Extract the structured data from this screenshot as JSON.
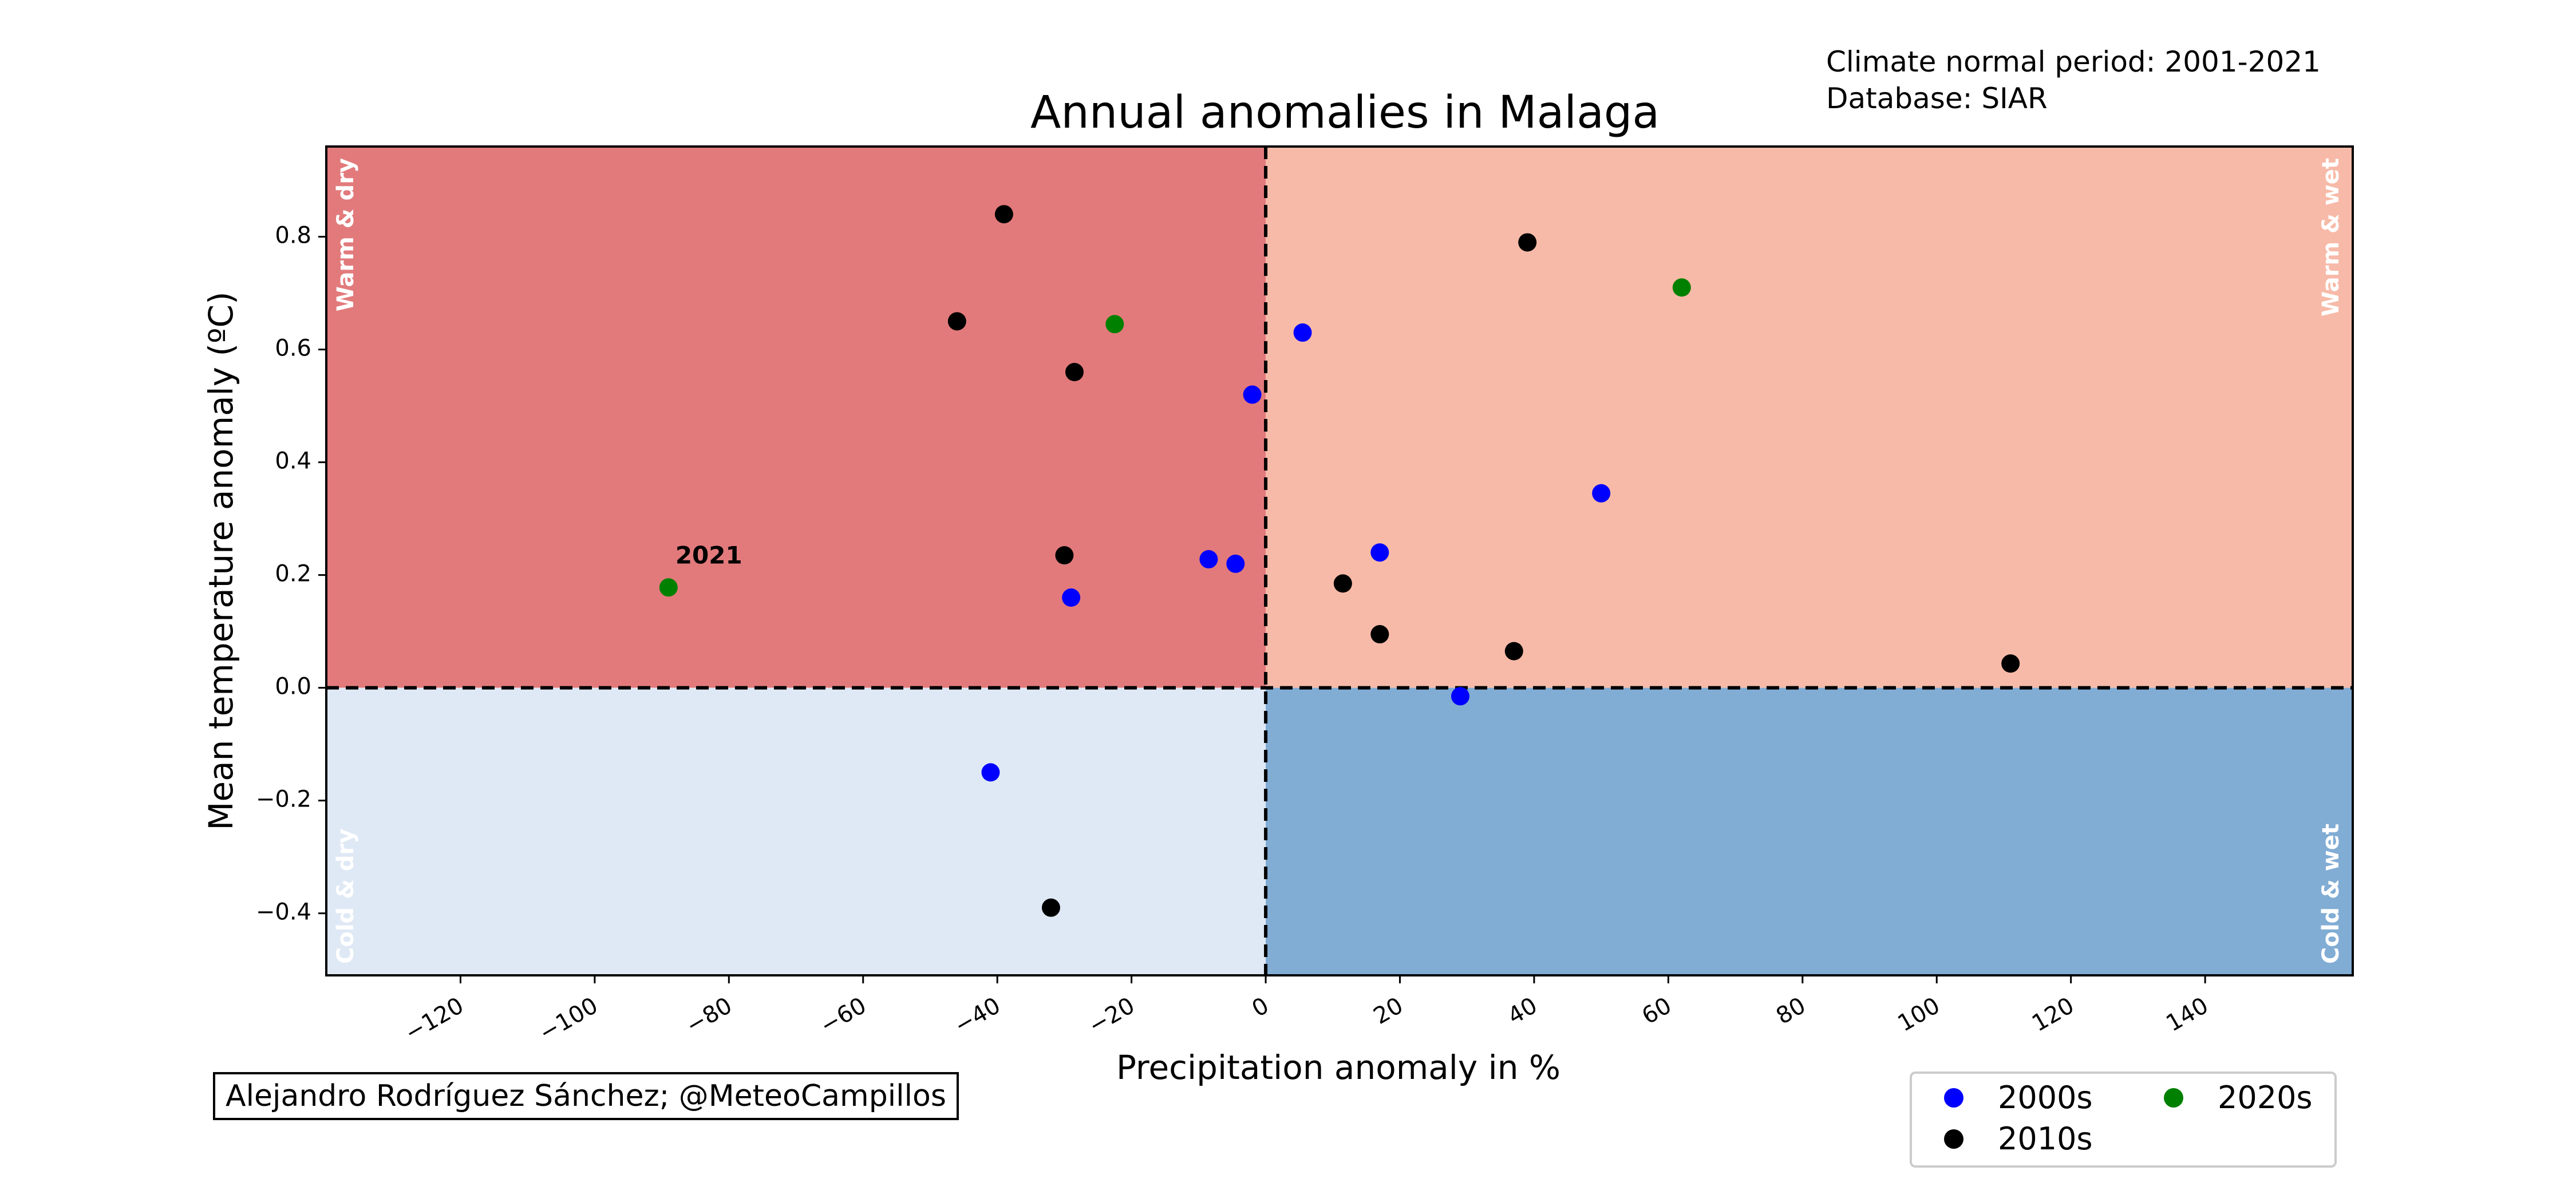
{
  "header": {
    "info_line1": "Climate normal period: 2001-2021",
    "info_line2": "Database: SIAR"
  },
  "credit": "Alejandro Rodríguez Sánchez; @MeteoCampillos",
  "colors": {
    "warm_dry": "#e27a7c",
    "warm_wet": "#f7baa8",
    "cold_dry": "#dfe9f5",
    "cold_wet": "#81acd4",
    "2000s": "#0000ff",
    "2010s": "#000000",
    "2020s": "#008000"
  },
  "chart_data": {
    "type": "scatter",
    "title": "Annual anomalies in Malaga",
    "xlabel": "Precipitation anomaly in %",
    "ylabel": "Mean temperature anomaly (ºC)",
    "xlim": [
      -140,
      162
    ],
    "ylim": [
      -0.51,
      0.96
    ],
    "xticks": [
      -120,
      -100,
      -80,
      -60,
      -40,
      -20,
      0,
      20,
      40,
      60,
      80,
      100,
      120,
      140
    ],
    "xtick_labels": [
      "−120",
      "−100",
      "−80",
      "−60",
      "−40",
      "−20",
      "0",
      "20",
      "40",
      "60",
      "80",
      "100",
      "120",
      "140"
    ],
    "yticks": [
      -0.4,
      -0.2,
      0.0,
      0.2,
      0.4,
      0.6,
      0.8
    ],
    "ytick_labels": [
      "−0.4",
      "−0.2",
      "0.0",
      "0.2",
      "0.4",
      "0.6",
      "0.8"
    ],
    "quadrant_labels": {
      "warm_dry": "Warm & dry",
      "warm_wet": "Warm & wet",
      "cold_dry": "Cold & dry",
      "cold_wet": "Cold & wet"
    },
    "reference_lines": {
      "x": 0,
      "y": 0,
      "style": "dashed"
    },
    "legend_position": "bottom-right",
    "series": [
      {
        "name": "2000s",
        "color": "#0000ff",
        "points": [
          [
            5.5,
            0.63
          ],
          [
            -2,
            0.52
          ],
          [
            50,
            0.345
          ],
          [
            17,
            0.24
          ],
          [
            -8.5,
            0.228
          ],
          [
            -4.5,
            0.22
          ],
          [
            -29,
            0.16
          ],
          [
            29,
            -0.015
          ],
          [
            -41,
            -0.15
          ]
        ]
      },
      {
        "name": "2010s",
        "color": "#000000",
        "points": [
          [
            -39,
            0.84
          ],
          [
            39,
            0.79
          ],
          [
            -46,
            0.65
          ],
          [
            -28.5,
            0.56
          ],
          [
            -30,
            0.235
          ],
          [
            11.5,
            0.185
          ],
          [
            17,
            0.095
          ],
          [
            37,
            0.065
          ],
          [
            111,
            0.043
          ],
          [
            -32,
            -0.39
          ]
        ]
      },
      {
        "name": "2020s",
        "color": "#008000",
        "points": [
          [
            62,
            0.71
          ],
          [
            -22.5,
            0.645
          ],
          [
            -89,
            0.178
          ]
        ]
      }
    ],
    "annotations": [
      {
        "text": "2021",
        "x": -89,
        "y": 0.178
      }
    ]
  }
}
